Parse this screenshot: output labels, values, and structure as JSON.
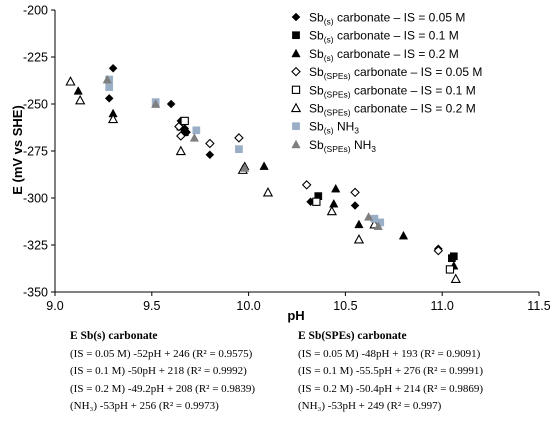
{
  "chart_data": {
    "type": "scatter",
    "xlabel": "pH",
    "ylabel": "E (mV vs SHE)",
    "xlim": [
      9.0,
      11.5
    ],
    "ylim": [
      -350,
      -200
    ],
    "xticks": [
      "9.0",
      "9.5",
      "10.0",
      "10.5",
      "11.0",
      "11.5"
    ],
    "yticks": [
      "-200",
      "-225",
      "-250",
      "-275",
      "-300",
      "-325",
      "-350"
    ],
    "grid": false,
    "legend_position": "top-right",
    "series": [
      {
        "name": "Sb(s) carbonate – IS = 0.05 M",
        "legend_main": "Sb",
        "legend_sub": "(s)",
        "legend_rest": " carbonate – IS = 0.05 M",
        "marker": "diamond-filled",
        "color": "#000000",
        "points": [
          [
            9.3,
            -231
          ],
          [
            9.28,
            -247
          ],
          [
            9.6,
            -250
          ],
          [
            9.65,
            -259
          ],
          [
            9.67,
            -263
          ],
          [
            9.68,
            -265
          ],
          [
            9.8,
            -277
          ],
          [
            10.32,
            -302
          ],
          [
            10.55,
            -304
          ],
          [
            10.98,
            -327
          ]
        ]
      },
      {
        "name": "Sb(s) carbonate – IS = 0.1 M",
        "legend_main": "Sb",
        "legend_sub": "(s)",
        "legend_rest": " carbonate – IS = 0.1 M",
        "marker": "square-filled",
        "color": "#000000",
        "points": [
          [
            9.67,
            -265
          ],
          [
            10.36,
            -299
          ],
          [
            11.05,
            -332
          ],
          [
            11.06,
            -331
          ]
        ]
      },
      {
        "name": "Sb(s) carbonate – IS = 0.2 M",
        "legend_main": "Sb",
        "legend_sub": "(s)",
        "legend_rest": " carbonate – IS = 0.2 M",
        "marker": "triangle-filled",
        "color": "#000000",
        "points": [
          [
            9.12,
            -243
          ],
          [
            9.3,
            -255
          ],
          [
            9.65,
            -262
          ],
          [
            9.98,
            -283
          ],
          [
            10.08,
            -283
          ],
          [
            10.44,
            -303
          ],
          [
            10.45,
            -295
          ],
          [
            10.57,
            -314
          ],
          [
            10.8,
            -320
          ],
          [
            11.06,
            -336
          ]
        ]
      },
      {
        "name": "Sb(SPEs) carbonate – IS = 0.05 M",
        "legend_main": "Sb",
        "legend_sub": "(SPEs)",
        "legend_rest": " carbonate – IS = 0.05 M",
        "marker": "diamond-open",
        "color": "#000000",
        "points": [
          [
            9.64,
            -262
          ],
          [
            9.65,
            -267
          ],
          [
            9.95,
            -268
          ],
          [
            9.8,
            -271
          ],
          [
            10.3,
            -293
          ],
          [
            10.55,
            -297
          ],
          [
            10.98,
            -328
          ]
        ]
      },
      {
        "name": "Sb(SPEs) carbonate – IS = 0.1 M",
        "legend_main": "Sb",
        "legend_sub": "(SPEs)",
        "legend_rest": " carbonate – IS = 0.1 M",
        "marker": "square-open",
        "color": "#000000",
        "points": [
          [
            9.67,
            -259
          ],
          [
            10.35,
            -302
          ],
          [
            11.04,
            -338
          ]
        ]
      },
      {
        "name": "Sb(SPEs) carbonate – IS = 0.2 M",
        "legend_main": "Sb",
        "legend_sub": "(SPEs)",
        "legend_rest": " carbonate – IS = 0.2 M",
        "marker": "triangle-open",
        "color": "#000000",
        "points": [
          [
            9.08,
            -238
          ],
          [
            9.13,
            -248
          ],
          [
            9.3,
            -258
          ],
          [
            9.65,
            -275
          ],
          [
            9.97,
            -285
          ],
          [
            10.1,
            -297
          ],
          [
            10.43,
            -307
          ],
          [
            10.57,
            -322
          ],
          [
            10.65,
            -314
          ],
          [
            11.07,
            -343
          ]
        ]
      },
      {
        "name": "Sb(s) NH3",
        "legend_main": "Sb",
        "legend_sub": "(s)",
        "legend_rest": " NH",
        "legend_sub2": "3",
        "marker": "square-grey",
        "color": "#9aaec6",
        "points": [
          [
            9.28,
            -237
          ],
          [
            9.28,
            -241
          ],
          [
            9.52,
            -249
          ],
          [
            9.73,
            -264
          ],
          [
            9.95,
            -274
          ],
          [
            10.65,
            -311
          ],
          [
            10.68,
            -313
          ]
        ]
      },
      {
        "name": "Sb(SPEs) NH3",
        "legend_main": "Sb",
        "legend_sub": "(SPEs)",
        "legend_rest": " NH",
        "legend_sub2": "3",
        "marker": "triangle-grey",
        "color": "#7f7f7f",
        "points": [
          [
            9.27,
            -237
          ],
          [
            9.52,
            -250
          ],
          [
            9.72,
            -268
          ],
          [
            9.98,
            -284
          ],
          [
            10.62,
            -310
          ],
          [
            10.67,
            -315
          ]
        ]
      }
    ]
  },
  "equations": {
    "left": {
      "heading": "E Sb(s) carbonate",
      "lines": [
        "(IS = 0.05 M)  -52pH + 246 (R² = 0.9575)",
        "(IS = 0.1 M)  -50pH + 218 (R² = 0.9992)",
        "(IS = 0.2 M)  -49.2pH + 208 (R² = 0.9839)",
        "(NH₃)  -53pH + 256 (R² = 0.9973)"
      ]
    },
    "right": {
      "heading": "E Sb(SPEs) carbonate",
      "lines": [
        "(IS = 0.05 M)  -48pH + 193 (R² = 0.9091)",
        "(IS = 0.1 M)  -55.5pH + 276 (R² = 0.9991)",
        "(IS = 0.2 M)  -50.4pH + 214 (R² = 0.9869)",
        "(NH₃)  -53pH + 249 (R² = 0.997)"
      ]
    }
  }
}
